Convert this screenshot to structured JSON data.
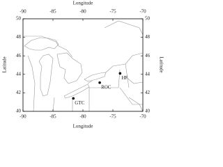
{
  "chart_data": {
    "type": "scatter",
    "x_label": "Longitude",
    "x2_label": "Longitude",
    "y_label": "Latitude",
    "y2_label": "Latitude",
    "xlim": [
      -90,
      -70
    ],
    "xticks": [
      -90,
      -85,
      -80,
      -75,
      -70
    ],
    "ylim": [
      40,
      50
    ],
    "yticks": [
      40,
      42,
      44,
      46,
      48,
      50
    ],
    "color": "#000000",
    "points": [
      {
        "label": "GTC",
        "x": -81.6,
        "y": 41.4
      },
      {
        "label": "ROC",
        "x": -77.2,
        "y": 43.1
      },
      {
        "label": "HF",
        "x": -73.8,
        "y": 44.1
      }
    ]
  }
}
